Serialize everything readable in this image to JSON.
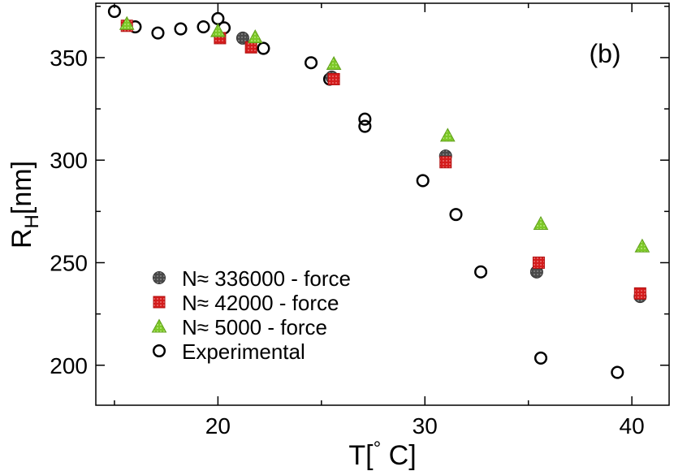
{
  "chart_data": {
    "type": "scatter",
    "panel_label": "(b)",
    "xlabel_main": "T[",
    "xlabel_degree": "°",
    "xlabel_unit": " C]",
    "ylabel_main": "R",
    "ylabel_sub": "H",
    "ylabel_unit": "[nm]",
    "xlim": [
      14.1,
      41.8
    ],
    "ylim": [
      180.5,
      376.5
    ],
    "xticks": [
      20,
      30,
      40
    ],
    "yticks": [
      200,
      250,
      300,
      350
    ],
    "xminor": [
      15,
      25,
      35
    ],
    "yminor": [
      225,
      275,
      325,
      375
    ],
    "legend_position": "lower-left",
    "series": [
      {
        "name": "N≈ 336000 - force",
        "marker": "circle-filled",
        "color": "#4a4a4a",
        "points": [
          [
            21.2,
            359.5
          ],
          [
            25.5,
            340.5
          ],
          [
            31.0,
            302.0
          ],
          [
            35.4,
            245.5
          ],
          [
            40.4,
            233.5
          ]
        ]
      },
      {
        "name": "N≈ 42000 - force",
        "marker": "square",
        "color": "#d41c1c",
        "points": [
          [
            15.6,
            365.5
          ],
          [
            20.1,
            359.5
          ],
          [
            21.6,
            355.0
          ],
          [
            25.6,
            339.5
          ],
          [
            31.0,
            299.0
          ],
          [
            35.5,
            250.0
          ],
          [
            40.4,
            235.0
          ]
        ]
      },
      {
        "name": "N≈ 5000 - force",
        "marker": "triangle",
        "color": "#7dc828",
        "points": [
          [
            15.6,
            366.5
          ],
          [
            20.0,
            363.0
          ],
          [
            21.8,
            360.0
          ],
          [
            25.6,
            347.0
          ],
          [
            31.1,
            312.0
          ],
          [
            35.6,
            269.0
          ],
          [
            40.5,
            258.0
          ]
        ]
      },
      {
        "name": "Experimental",
        "marker": "circle-open",
        "color": "#000000",
        "points": [
          [
            15.0,
            372.5
          ],
          [
            16.0,
            365.0
          ],
          [
            17.1,
            362.0
          ],
          [
            18.2,
            364.0
          ],
          [
            19.3,
            365.0
          ],
          [
            20.0,
            369.0
          ],
          [
            20.3,
            364.5
          ],
          [
            22.2,
            354.5
          ],
          [
            24.5,
            347.5
          ],
          [
            25.4,
            339.5
          ],
          [
            27.1,
            320.0
          ],
          [
            27.1,
            316.5
          ],
          [
            29.9,
            290.0
          ],
          [
            31.5,
            273.5
          ],
          [
            32.7,
            245.5
          ],
          [
            35.6,
            203.5
          ],
          [
            39.3,
            196.5
          ]
        ]
      }
    ]
  }
}
